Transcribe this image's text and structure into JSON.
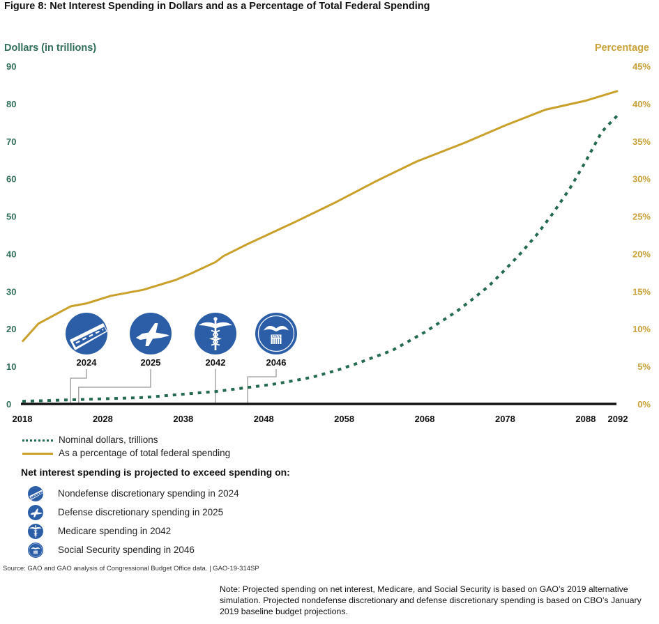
{
  "figure": {
    "title": "Figure 8: Net Interest Spending in Dollars and as a Percentage of Total Federal Spending",
    "source": "Source: GAO and GAO analysis of Congressional Budget Office data.  |  GAO-19-314SP",
    "note": "Note: Projected spending on net interest, Medicare, and Social Security is based on GAO’s 2019 alternative simulation. Projected nondefense discretionary and defense discretionary spending is based on CBO’s January 2019 baseline budget projections."
  },
  "colors": {
    "dollars_series": "#236a4f",
    "percent_series": "#c9a02a",
    "left_axis_text": "#2f6e58",
    "right_axis_text": "#c9a23a",
    "icon_blue": "#2c5ea8"
  },
  "legend": {
    "items": [
      {
        "label": "Nominal dollars, trillions",
        "style": "dotted"
      },
      {
        "label": "As a percentage of total federal spending",
        "style": "solid"
      }
    ]
  },
  "milestones": {
    "title": "Net interest spending is projected to exceed spending on:",
    "items": [
      {
        "year": "2024",
        "icon": "road-icon",
        "label": "Nondefense discretionary spending in 2024"
      },
      {
        "year": "2025",
        "icon": "fighter-jet-icon",
        "label": "Defense discretionary spending in 2025"
      },
      {
        "year": "2042",
        "icon": "caduceus-icon",
        "label": "Medicare spending in 2042"
      },
      {
        "year": "2046",
        "icon": "social-security-seal-icon",
        "label": "Social Security spending in 2046"
      }
    ],
    "seal_text_top": "SOCIAL SECURITY",
    "seal_text_mid": "USA",
    "seal_text_bottom": "ADMINISTRATION"
  },
  "chart_data": {
    "type": "line",
    "title": "Figure 8: Net Interest Spending in Dollars and as a Percentage of Total Federal Spending",
    "xlabel": "",
    "ylabel": "Dollars (in trillions)",
    "y2label": "Percentage",
    "xlim": [
      2018,
      2092
    ],
    "ylim": [
      0,
      90
    ],
    "y2lim": [
      0,
      45
    ],
    "x_ticks": [
      "2018",
      "2028",
      "2038",
      "2048",
      "2058",
      "2068",
      "2078",
      "2088",
      "2092"
    ],
    "y_ticks": [
      "0",
      "10",
      "20",
      "30",
      "40",
      "50",
      "60",
      "70",
      "80",
      "90"
    ],
    "y2_ticks": [
      "0%",
      "5%",
      "10%",
      "15%",
      "20%",
      "25%",
      "30%",
      "35%",
      "40%",
      "45%"
    ],
    "grid": false,
    "series": [
      {
        "name": "Nominal dollars, trillions",
        "axis": "left",
        "style": "dotted",
        "x": [
          2018,
          2024,
          2033,
          2042,
          2049,
          2051,
          2054,
          2057,
          2060,
          2064,
          2068,
          2070,
          2072,
          2074,
          2076,
          2078,
          2080,
          2082,
          2084,
          2086,
          2088,
          2090,
          2092
        ],
        "values": [
          0.7,
          1.1,
          1.7,
          3.3,
          5.2,
          5.9,
          7.1,
          8.9,
          11.1,
          14.3,
          19.1,
          21.9,
          24.7,
          28.0,
          31.5,
          35.8,
          40.3,
          45.3,
          51.0,
          57.3,
          64.6,
          72.5,
          77.0
        ]
      },
      {
        "name": "As a percentage of total federal spending",
        "axis": "right",
        "style": "solid",
        "x": [
          2018,
          2020,
          2024,
          2026,
          2029,
          2033,
          2037,
          2039,
          2042,
          2043,
          2046,
          2052,
          2057,
          2062,
          2067,
          2073,
          2078,
          2083,
          2088,
          2092
        ],
        "values": [
          8.3,
          10.7,
          13.0,
          13.4,
          14.4,
          15.2,
          16.5,
          17.4,
          18.9,
          19.7,
          21.3,
          24.3,
          26.9,
          29.7,
          32.3,
          34.8,
          37.1,
          39.2,
          40.4,
          41.7
        ]
      }
    ],
    "annotations": [
      {
        "label": "2024",
        "x": 2024
      },
      {
        "label": "2025",
        "x": 2025
      },
      {
        "label": "2042",
        "x": 2042
      },
      {
        "label": "2046",
        "x": 2046
      }
    ],
    "legend_position": "bottom-left"
  }
}
